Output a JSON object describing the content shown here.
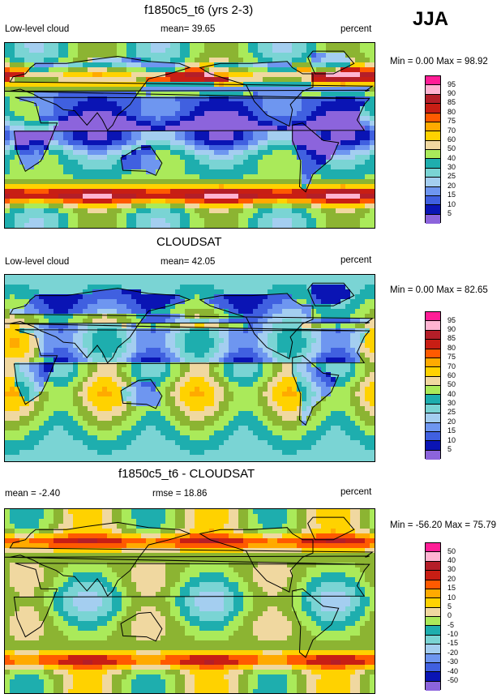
{
  "season": "JJA",
  "colors": {
    "pos": [
      "#8c64dc",
      "#0a14b4",
      "#4060e0",
      "#6e96f0",
      "#a4cef0",
      "#7ad4d4",
      "#1eaeae",
      "#aaea5a",
      "#8cb432",
      "#f0d8a0",
      "#ffd200",
      "#ffaa00",
      "#ff5a00",
      "#c81e14",
      "#b41e28",
      "#ffb4d2",
      "#ff1e96"
    ],
    "diff": [
      "#8c64dc",
      "#0a14b4",
      "#4060e0",
      "#6e96f0",
      "#a4cef0",
      "#7ad4d4",
      "#1eaeae",
      "#aaea5a",
      "#8cb432",
      "#f0d8a0",
      "#ffd200",
      "#ffaa00",
      "#ff5a00",
      "#c81e14",
      "#b41e28",
      "#ffb4d2",
      "#ff1e96"
    ]
  },
  "panels": [
    {
      "title": "f1850c5_t6 (yrs 2-3)",
      "left_label": "Low-level cloud",
      "mid_label": "mean=  39.65",
      "units": "percent",
      "minmax": "Min =   0.00 Max =  98.92",
      "levels": [
        "95",
        "90",
        "85",
        "80",
        "75",
        "70",
        "60",
        "50",
        "40",
        "30",
        "25",
        "20",
        "15",
        "10",
        "5"
      ],
      "palette": "pos",
      "pattern": "model"
    },
    {
      "title": "CLOUDSAT",
      "left_label": "Low-level cloud",
      "mid_label": "mean=  42.05",
      "units": "percent",
      "minmax": "Min =   0.00 Max =  82.65",
      "levels": [
        "95",
        "90",
        "85",
        "80",
        "75",
        "70",
        "60",
        "50",
        "40",
        "30",
        "25",
        "20",
        "15",
        "10",
        "5"
      ],
      "palette": "pos",
      "pattern": "obs"
    },
    {
      "title": "f1850c5_t6 - CLOUDSAT",
      "left_label": "mean =  -2.40",
      "mid_label": "rmse =  18.86",
      "units": "percent",
      "minmax": "Min = -56.20 Max =  75.79",
      "levels": [
        "50",
        "40",
        "30",
        "20",
        "15",
        "10",
        "5",
        "0",
        "-5",
        "-10",
        "-15",
        "-20",
        "-30",
        "-40",
        "-50"
      ],
      "palette": "diff",
      "pattern": "diff"
    }
  ]
}
